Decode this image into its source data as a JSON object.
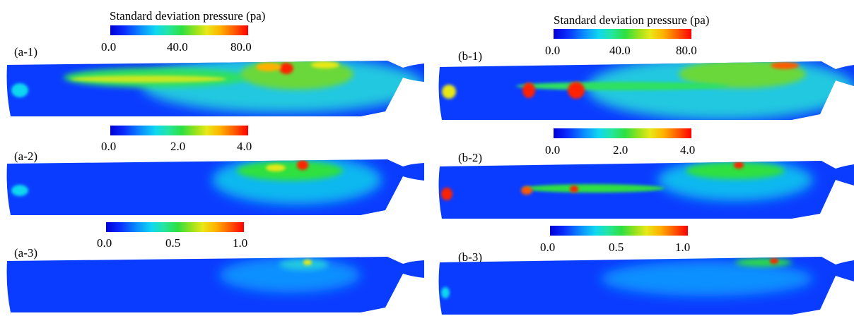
{
  "titles": {
    "left": "Standard deviation pressure (pa)",
    "right": "Standard deviation pressure (pa)"
  },
  "panels": [
    {
      "label": "(a-1)",
      "ticks": [
        "0.0",
        "40.0",
        "80.0"
      ]
    },
    {
      "label": "(a-2)",
      "ticks": [
        "0.0",
        "2.0",
        "4.0"
      ]
    },
    {
      "label": "(a-3)",
      "ticks": [
        "0.0",
        "0.5",
        "1.0"
      ]
    },
    {
      "label": "(b-1)",
      "ticks": [
        "0.0",
        "40.0",
        "80.0"
      ]
    },
    {
      "label": "(b-2)",
      "ticks": [
        "0.0",
        "2.0",
        "4.0"
      ]
    },
    {
      "label": "(b-3)",
      "ticks": [
        "0.0",
        "0.5",
        "1.0"
      ]
    }
  ],
  "colors": {
    "low": "#0a2cff",
    "mid_low": "#10d8f0",
    "mid": "#2ee040",
    "mid_high": "#e8e818",
    "high": "#ff0000"
  },
  "chart_data": {
    "type": "heatmap",
    "title": "Standard deviation pressure (pa)",
    "colorbars": [
      {
        "panel": "(a-1)",
        "range": [
          0,
          80
        ],
        "ticks": [
          0.0,
          40.0,
          80.0
        ]
      },
      {
        "panel": "(a-2)",
        "range": [
          0,
          4
        ],
        "ticks": [
          0.0,
          2.0,
          4.0
        ]
      },
      {
        "panel": "(a-3)",
        "range": [
          0,
          1
        ],
        "ticks": [
          0.0,
          0.5,
          1.0
        ]
      },
      {
        "panel": "(b-1)",
        "range": [
          0,
          80
        ],
        "ticks": [
          0.0,
          40.0,
          80.0
        ]
      },
      {
        "panel": "(b-2)",
        "range": [
          0,
          4
        ],
        "ticks": [
          0.0,
          2.0,
          4.0
        ]
      },
      {
        "panel": "(b-3)",
        "range": [
          0,
          1
        ],
        "ticks": [
          0.0,
          0.5,
          1.0
        ]
      }
    ]
  }
}
